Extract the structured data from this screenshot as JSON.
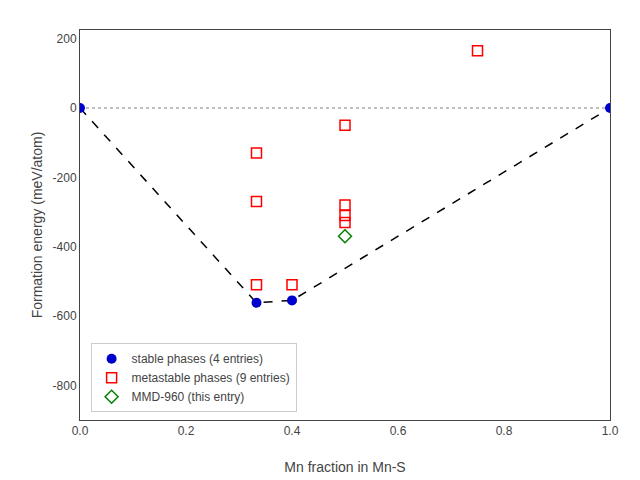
{
  "chart_data": {
    "type": "scatter",
    "xlabel": "Mn fraction in Mn-S",
    "ylabel": "Formation energy (meV/atom)",
    "xlim": [
      0.0,
      1.0
    ],
    "ylim": [
      -900,
      225
    ],
    "xticks": [
      {
        "value": 0.0,
        "label": "0.0"
      },
      0.2,
      0.4,
      0.6,
      0.8,
      {
        "value": 1.0,
        "label": "1.0"
      }
    ],
    "yticks": [
      -800,
      -600,
      -400,
      -200,
      0,
      200
    ],
    "grid": false,
    "legend": "lower left",
    "series": [
      {
        "name": "stable phases (4 entries)",
        "type": "scatter",
        "marker": "circle",
        "color": "#0000cd",
        "x": [
          0.0,
          0.333,
          0.4,
          1.0
        ],
        "values": [
          0.0,
          -562.0,
          -555.0,
          0.0
        ]
      },
      {
        "name": "metastable phases (9 entries)",
        "type": "scatter",
        "marker": "open-square",
        "color": "#ff0000",
        "x": [
          0.333,
          0.333,
          0.5,
          0.5,
          0.5,
          0.5,
          0.333,
          0.75,
          0.4
        ],
        "values": [
          -130,
          -270,
          -50,
          -280,
          -310,
          -330,
          -510,
          165,
          -510
        ]
      },
      {
        "name": "MMD-960 (this entry)",
        "type": "scatter",
        "marker": "open-diamond",
        "color": "#008000",
        "x": [
          0.5
        ],
        "values": [
          -370
        ]
      },
      {
        "type": "line",
        "line_style": "dashed",
        "color": "#000000",
        "x": [
          0.0,
          0.333,
          0.4,
          1.0
        ],
        "values": [
          0.0,
          -562.0,
          -555.0,
          0.0
        ]
      },
      {
        "type": "hline",
        "line_style": "dotted",
        "color": "gray",
        "values": [
          0
        ]
      }
    ]
  }
}
